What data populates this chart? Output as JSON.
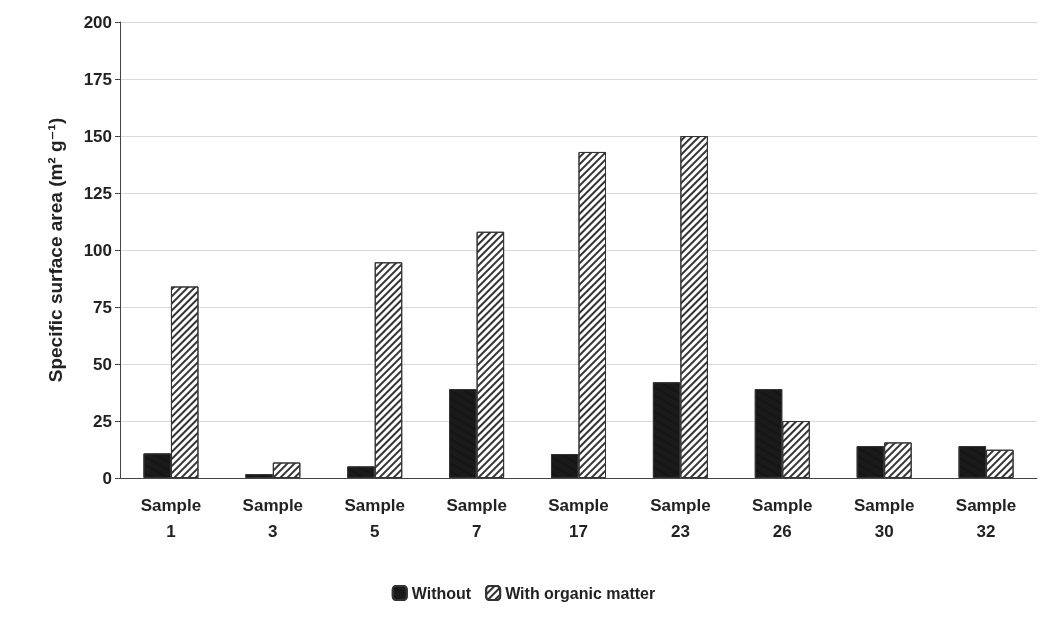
{
  "chart_data": {
    "type": "bar",
    "ylabel": "Specific surface area (m² g⁻¹)",
    "categories": [
      "Sample\n1",
      "Sample\n3",
      "Sample\n5",
      "Sample\n7",
      "Sample\n17",
      "Sample\n23",
      "Sample\n26",
      "Sample\n30",
      "Sample\n32"
    ],
    "series": [
      {
        "name": "Without",
        "color": "#1a1a1a",
        "values": [
          10.8,
          1.7,
          5.1,
          39,
          10.5,
          42,
          39,
          14,
          14
        ]
      },
      {
        "name": "With organic matter",
        "color": "#ffffff",
        "values": [
          84,
          6.8,
          94.6,
          108,
          143,
          150,
          25,
          15.6,
          12.4
        ]
      }
    ],
    "ylim": [
      0,
      200
    ],
    "yticks": [
      0,
      25,
      50,
      75,
      100,
      125,
      150,
      175,
      200
    ],
    "grid": "y",
    "legend": "bottom"
  }
}
